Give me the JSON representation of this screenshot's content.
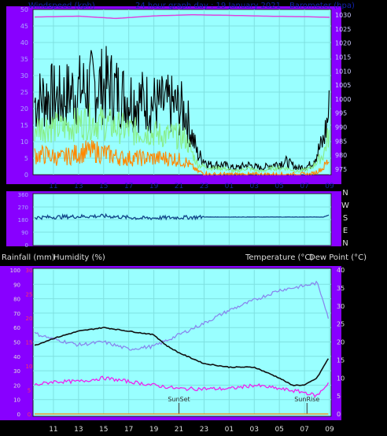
{
  "header": {
    "windspeed_label": "Windspeed (kph)",
    "title": "24 hour graph day : 19 January 2021",
    "barometer_label": "Barometer (hpa)"
  },
  "mid_labels": {
    "rainfall": "Rainfall (mm)",
    "humidity": "Humidity (%)",
    "temperature": "Temperature (°C)",
    "dewpoint": "Dew Point (°C)"
  },
  "colors": {
    "panel_bg": "#99FFFF",
    "frame": "#8800FF",
    "wind_gust": "#000000",
    "wind_avg": "#88EE88",
    "wind_low": "#FF8800",
    "pressure": "#DD44DD",
    "direction": "#114488",
    "humidity": "#8888EE",
    "temperature": "#111111",
    "dewpoint": "#EE22EE"
  },
  "chart_data": [
    {
      "type": "line",
      "title": "24 hour graph day : 19 January 2021",
      "x_ticks": [
        "11",
        "13",
        "15",
        "17",
        "19",
        "21",
        "23",
        "01",
        "03",
        "05",
        "07",
        "09"
      ],
      "left_axis": {
        "label": "Windspeed (kph)",
        "ticks": [
          0,
          5,
          10,
          15,
          20,
          25,
          30,
          35,
          40,
          45,
          50
        ],
        "range": [
          0,
          50
        ]
      },
      "right_axis": {
        "label": "Barometer (hpa)",
        "ticks": [
          975,
          980,
          985,
          990,
          995,
          1000,
          1005,
          1010,
          1015,
          1020,
          1025,
          1030
        ],
        "range": [
          973,
          1032
        ]
      },
      "series": [
        {
          "name": "Windspeed (kph)",
          "role": "gust",
          "hours": [
            9.5,
            10.5,
            11.5,
            12.5,
            13.5,
            14.5,
            15.5,
            16.5,
            17.5,
            18.5,
            19.5,
            20.5,
            21.5,
            22.5,
            23.5,
            24.5,
            25.5,
            26.5,
            27.5,
            28.5,
            29.5,
            30.5,
            31.5,
            32.5,
            33
          ],
          "values": [
            22,
            24,
            23,
            25,
            26,
            27,
            27,
            24,
            23,
            22,
            21,
            21,
            19,
            6,
            3,
            3,
            2,
            3,
            2,
            3,
            4,
            2,
            3,
            10,
            20
          ]
        },
        {
          "name": "average",
          "role": "average",
          "hours": [
            9.5,
            10.5,
            11.5,
            12.5,
            13.5,
            14.5,
            15.5,
            16.5,
            17.5,
            18.5,
            19.5,
            20.5,
            21.5,
            22.5,
            23.5,
            24.5,
            25.5,
            26.5,
            27.5,
            28.5,
            29.5,
            30.5,
            31.5,
            32.5,
            33
          ],
          "values": [
            14,
            15,
            14,
            15,
            16,
            16,
            15,
            14,
            13,
            13,
            12,
            12,
            11,
            3,
            2,
            2,
            1,
            2,
            1,
            2,
            2,
            1,
            2,
            6,
            13
          ]
        },
        {
          "name": "lowest",
          "role": "low",
          "hours": [
            9.5,
            10.5,
            11.5,
            12.5,
            13.5,
            14.5,
            15.5,
            16.5,
            17.5,
            18.5,
            19.5,
            20.5,
            21.5,
            22.5,
            23.5,
            24.5,
            25.5,
            26.5,
            27.5,
            28.5,
            29.5,
            30.5,
            31.5,
            32.5,
            33
          ],
          "values": [
            6,
            6,
            5,
            6,
            7,
            7,
            6,
            5,
            5,
            5,
            5,
            5,
            4,
            1,
            0,
            0,
            0,
            0,
            0,
            0,
            0,
            0,
            0,
            2,
            5
          ]
        },
        {
          "name": "Barometer (hpa)",
          "role": "pressure",
          "axis": "right",
          "hours": [
            9.5,
            13,
            16,
            19,
            22,
            25,
            28,
            31,
            33
          ],
          "values": [
            1029.3,
            1029.6,
            1028.8,
            1029.7,
            1030.1,
            1029.9,
            1029.6,
            1029.4,
            1029.2
          ]
        }
      ]
    },
    {
      "type": "line",
      "title": "",
      "left_axis": {
        "ticks": [
          0,
          90,
          180,
          270,
          360
        ],
        "range": [
          0,
          360
        ]
      },
      "right_axis": {
        "ticks": [
          "N",
          "W",
          "S",
          "E",
          "N"
        ]
      },
      "series": [
        {
          "name": "",
          "role": "direction",
          "hours": [
            9.5,
            12,
            15,
            18,
            21,
            23,
            26,
            29,
            31,
            32.5,
            33
          ],
          "values": [
            195,
            200,
            205,
            190,
            195,
            198,
            198,
            198,
            198,
            198,
            215
          ]
        }
      ]
    },
    {
      "type": "line",
      "title": "",
      "x_ticks": [
        "11",
        "13",
        "15",
        "17",
        "19",
        "21",
        "23",
        "01",
        "03",
        "05",
        "07",
        "09"
      ],
      "left_axis_outer": {
        "label": "Humidity (%)",
        "ticks": [
          0,
          10,
          20,
          30,
          40,
          50,
          60,
          70,
          80,
          90,
          100
        ],
        "range": [
          0,
          100
        ]
      },
      "left_axis_inner": {
        "label": "Rainfall (mm)",
        "ticks": [
          0,
          5,
          10,
          15,
          20,
          25,
          30
        ],
        "range": [
          0,
          30
        ]
      },
      "right_axis": {
        "label": "Temperature (°C)",
        "ticks": [
          0,
          5,
          10,
          15,
          20,
          25,
          30,
          35,
          40
        ],
        "range": [
          0,
          40
        ]
      },
      "annotations": [
        {
          "text": "SunSet",
          "hour": 21
        },
        {
          "text": "SunRise",
          "hour": 31.2
        }
      ],
      "series": [
        {
          "name": "Humidity (%)",
          "role": "humidity",
          "axis": "left_outer",
          "hours": [
            9.5,
            11,
            13,
            15,
            17,
            19,
            21,
            23,
            25,
            27,
            29,
            31,
            32,
            32.5,
            33
          ],
          "values": [
            56,
            52,
            48,
            50,
            45,
            47,
            55,
            63,
            72,
            79,
            86,
            89,
            91,
            79,
            64
          ]
        },
        {
          "name": "Temperature (°C)",
          "role": "temperature",
          "axis": "right",
          "hours": [
            9.5,
            11,
            13,
            15,
            17,
            19,
            20,
            21,
            23,
            25,
            27,
            29,
            30,
            31,
            32,
            32.5,
            33
          ],
          "values": [
            19,
            21,
            23,
            24,
            23,
            22,
            19,
            17,
            14,
            13,
            13,
            10,
            8,
            8,
            10,
            13,
            16
          ]
        },
        {
          "name": "Dew Point (°C)",
          "role": "dewpoint",
          "axis": "right",
          "hours": [
            9.5,
            11,
            13,
            15,
            17,
            19,
            21,
            23,
            25,
            27,
            29,
            31,
            32,
            33
          ],
          "values": [
            8,
            9,
            9,
            10,
            9,
            8,
            7,
            7,
            7,
            8,
            7,
            6,
            5,
            9
          ]
        },
        {
          "name": "Rainfall (mm)",
          "role": "rain",
          "axis": "left_inner",
          "hours": [
            9.5,
            33
          ],
          "values": [
            0,
            0
          ]
        }
      ]
    }
  ]
}
